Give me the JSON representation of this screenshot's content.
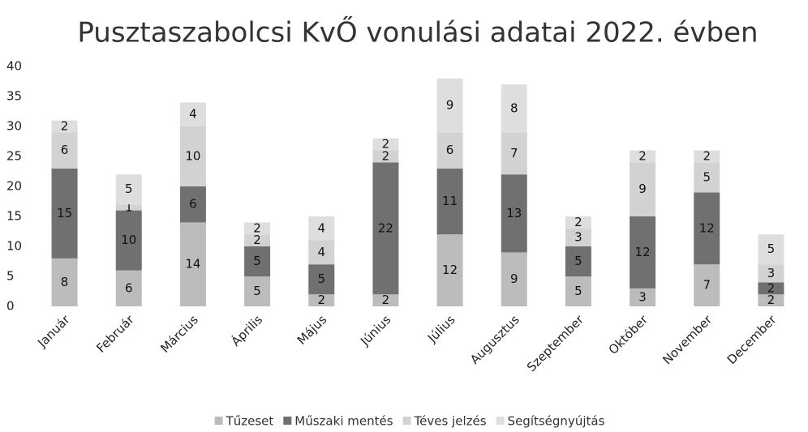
{
  "chart_data": {
    "type": "stacked_bar",
    "title": "Pusztaszabolcsi KvŐ vonulási adatai 2022. évben",
    "categories": [
      "Január",
      "Február",
      "Március",
      "Április",
      "Május",
      "Június",
      "Július",
      "Augusztus",
      "Szeptember",
      "Október",
      "November",
      "December"
    ],
    "series": [
      {
        "name": "Tűzeset",
        "color": "#bcbcbc",
        "values": [
          8,
          6,
          14,
          5,
          2,
          2,
          12,
          9,
          5,
          3,
          7,
          2
        ]
      },
      {
        "name": "Műszaki mentés",
        "color": "#707070",
        "values": [
          15,
          10,
          6,
          5,
          5,
          22,
          11,
          13,
          5,
          12,
          12,
          2
        ]
      },
      {
        "name": "Téves jelzés",
        "color": "#d2d2d2",
        "values": [
          6,
          1,
          10,
          2,
          4,
          2,
          6,
          7,
          3,
          9,
          5,
          3
        ]
      },
      {
        "name": "Segítségnyújtás",
        "color": "#dedede",
        "values": [
          2,
          5,
          4,
          2,
          4,
          2,
          9,
          8,
          2,
          2,
          2,
          5
        ]
      }
    ],
    "ylim": [
      0,
      40
    ],
    "yticks": [
      0,
      5,
      10,
      15,
      20,
      25,
      30,
      35,
      40
    ],
    "grid": false,
    "legend": "bottom"
  }
}
